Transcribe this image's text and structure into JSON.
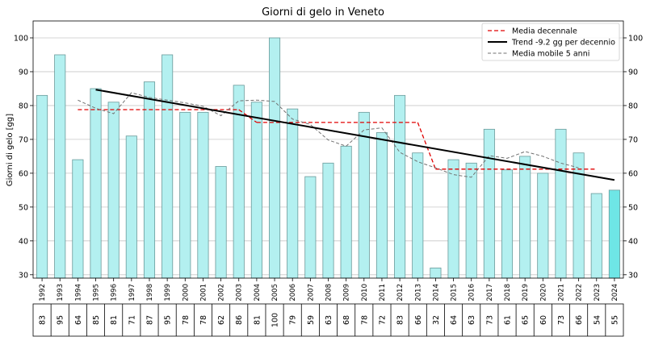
{
  "chart_data": {
    "type": "bar",
    "title": "Giorni di gelo in Veneto",
    "ylabel": "Giorni di gelo [gg]",
    "ylim": [
      29,
      105
    ],
    "yticks": [
      30,
      40,
      50,
      60,
      70,
      80,
      90,
      100
    ],
    "grid": true,
    "legend_position": "top-right",
    "categories": [
      "1992",
      "1993",
      "1994",
      "1995",
      "1996",
      "1997",
      "1998",
      "1999",
      "2000",
      "2001",
      "2002",
      "2003",
      "2004",
      "2005",
      "2006",
      "2007",
      "2008",
      "2009",
      "2010",
      "2011",
      "2012",
      "2013",
      "2014",
      "2015",
      "2016",
      "2017",
      "2018",
      "2019",
      "2020",
      "2021",
      "2022",
      "2023",
      "2024"
    ],
    "values": [
      83,
      95,
      64,
      85,
      81,
      71,
      87,
      95,
      78,
      78,
      62,
      86,
      81,
      100,
      79,
      59,
      63,
      68,
      78,
      72,
      83,
      66,
      32,
      64,
      63,
      73,
      61,
      65,
      60,
      73,
      66,
      54,
      55
    ],
    "table_values": [
      "83",
      "95",
      "64",
      "85",
      "81",
      "71",
      "87",
      "95",
      "78",
      "78",
      "62",
      "86",
      "81",
      "100",
      "79",
      "59",
      "63",
      "68",
      "78",
      "72",
      "83",
      "66",
      "32",
      "64",
      "63",
      "73",
      "61",
      "65",
      "60",
      "73",
      "66",
      "54",
      "55"
    ],
    "bar_color": "#b3f0f0",
    "highlight_bar_color": "#6ee6e6",
    "highlight_index": 32,
    "series": [
      {
        "name": "Media decennale",
        "style": "dashed",
        "color": "#e00000",
        "segments": [
          {
            "x": [
              1994,
              2003
            ],
            "y": [
              78.8,
              78.8
            ]
          },
          {
            "x": [
              2003,
              2004
            ],
            "y": [
              78.8,
              75.0
            ]
          },
          {
            "x": [
              2004,
              2013
            ],
            "y": [
              75.0,
              75.0
            ]
          },
          {
            "x": [
              2013,
              2014
            ],
            "y": [
              75.0,
              61.2
            ]
          },
          {
            "x": [
              2014,
              2023
            ],
            "y": [
              61.2,
              61.2
            ]
          }
        ]
      },
      {
        "name": "Trend -9.2 gg per decennio",
        "style": "solid",
        "color": "#000000",
        "x": [
          1995,
          2024
        ],
        "y": [
          84.7,
          58.0
        ]
      },
      {
        "name": "Media mobile 5 anni",
        "style": "dashed",
        "color": "#707070",
        "x": [
          1994,
          1995,
          1996,
          1997,
          1998,
          1999,
          2000,
          2001,
          2002,
          2003,
          2004,
          2005,
          2006,
          2007,
          2008,
          2009,
          2010,
          2011,
          2012,
          2013,
          2014,
          2015,
          2016,
          2017,
          2018,
          2019,
          2020,
          2021,
          2022
        ],
        "y": [
          81.6,
          79.2,
          77.6,
          83.8,
          82.4,
          81.6,
          80.8,
          79.8,
          77.0,
          81.4,
          81.6,
          81.2,
          76.0,
          74.4,
          69.8,
          68.0,
          72.8,
          73.4,
          66.2,
          63.4,
          61.6,
          59.6,
          58.8,
          65.2,
          64.4,
          66.4,
          65.0,
          63.0,
          61.6
        ]
      }
    ]
  }
}
